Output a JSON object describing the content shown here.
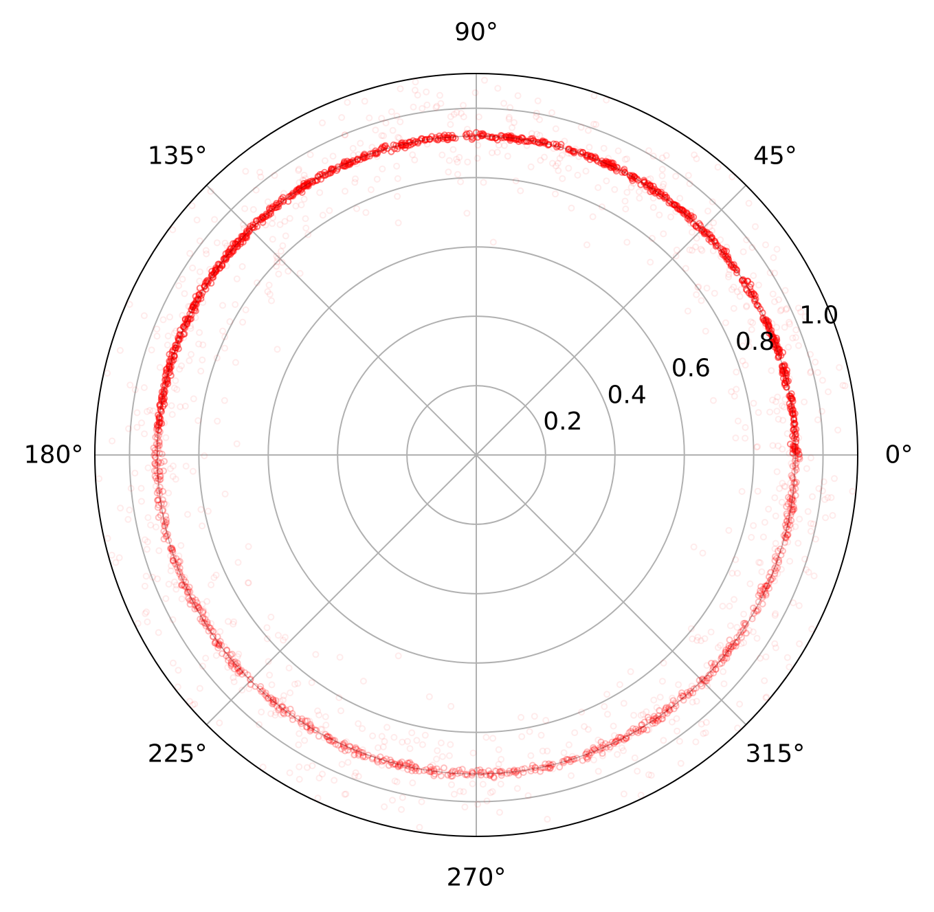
{
  "chart_data": {
    "type": "scatter",
    "projection": "polar",
    "title": "",
    "theta_unit": "degrees",
    "r_range": [
      0,
      1.1
    ],
    "r_ticks": [
      0.2,
      0.4,
      0.6,
      0.8,
      1.0
    ],
    "r_tick_labels": [
      "0.2",
      "0.4",
      "0.6",
      "0.8",
      "1.0"
    ],
    "r_label_angle_deg": 22.5,
    "theta_ticks": [
      0,
      45,
      90,
      135,
      180,
      225,
      270,
      315
    ],
    "theta_tick_labels": [
      "0°",
      "45°",
      "90°",
      "135°",
      "180°",
      "225°",
      "270°",
      "315°"
    ],
    "grid": true,
    "legend": "none",
    "colors": {
      "points": "#ff0000",
      "grid": "#b0b0b0",
      "frame": "#000000"
    },
    "series": [
      {
        "description_of_shape": "dense ring of points near r≈0.92",
        "theta_range_deg": [
          0,
          360
        ],
        "r_center": 0.92,
        "r_spread": 0.02,
        "dense_theta_range_deg": [
          0,
          175
        ],
        "marker": "open-circle",
        "alpha_dense": 0.5,
        "alpha_sparse": 0.08
      }
    ]
  }
}
